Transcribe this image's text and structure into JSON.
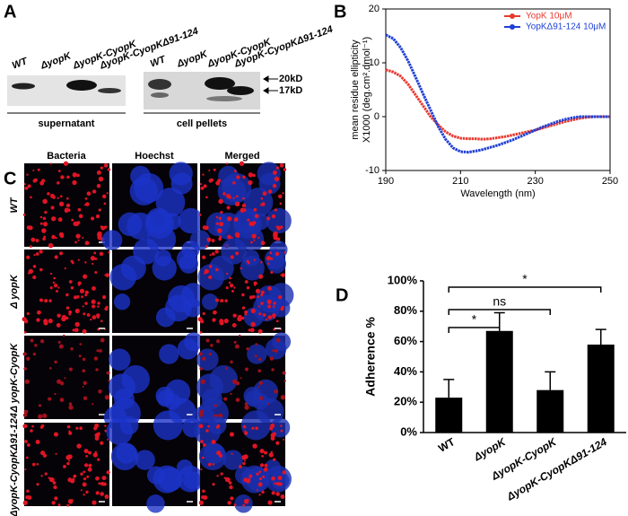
{
  "panel_a": {
    "label": "A",
    "lanes": [
      "WT",
      "ΔyopK",
      "ΔyopK-CyopK",
      "ΔyopK-CyopKΔ91-124"
    ],
    "groups": [
      "supernatant",
      "cell pellets"
    ],
    "markers": [
      "20kD",
      "17kD"
    ]
  },
  "panel_c": {
    "label": "C",
    "columns": [
      "Bacteria",
      "Hoechst",
      "Merged"
    ],
    "rows": [
      "WT",
      "Δ yopK",
      "Δ yopK-CyopK",
      "ΔyopK-CyopKΔ91-124"
    ]
  },
  "chart_data": [
    {
      "type": "line",
      "panel_label": "B",
      "xlabel": "Wavelength (nm)",
      "ylabel": [
        "mean residue ellipticity",
        "X1000 (deg.cm².dmol⁻¹)"
      ],
      "x": [
        190,
        192,
        194,
        196,
        198,
        200,
        202,
        204,
        206,
        208,
        210,
        212,
        214,
        216,
        218,
        220,
        222,
        224,
        226,
        228,
        230,
        232,
        234,
        236,
        238,
        240,
        242,
        244,
        246,
        248,
        250
      ],
      "series": [
        {
          "name": "YopK 10μM",
          "color": "#e8392f",
          "values": [
            8.7,
            8.3,
            7.5,
            6,
            4,
            2,
            0,
            -1.5,
            -2.8,
            -3.6,
            -4,
            -4.1,
            -4.1,
            -4.2,
            -4.1,
            -3.9,
            -3.7,
            -3.4,
            -3.1,
            -2.8,
            -2.5,
            -2.1,
            -1.7,
            -1.3,
            -0.9,
            -0.6,
            -0.3,
            -0.1,
            0,
            0,
            0
          ]
        },
        {
          "name": "YopKΔ91-124 10μM",
          "color": "#1f3fd6",
          "values": [
            15.2,
            14.5,
            12.8,
            10.3,
            7.3,
            4.2,
            1.2,
            -1.8,
            -4.2,
            -5.8,
            -6.5,
            -6.6,
            -6.4,
            -6.1,
            -5.7,
            -5.3,
            -4.8,
            -4.3,
            -3.7,
            -3.1,
            -2.5,
            -1.9,
            -1.4,
            -0.9,
            -0.5,
            -0.2,
            0,
            0,
            0,
            0,
            0
          ]
        }
      ],
      "xlim": [
        190,
        250
      ],
      "xticks": [
        190,
        210,
        230,
        250
      ],
      "ylim": [
        -10,
        20
      ],
      "yticks": [
        -10,
        0,
        10,
        20
      ],
      "legend": "upper right"
    },
    {
      "type": "bar",
      "panel_label": "D",
      "ylabel": "Adherence %",
      "categories": [
        "WT",
        "ΔyopK",
        "ΔyopK-CyopK",
        "ΔyopK-CyopKΔ91-124"
      ],
      "values": [
        23,
        67,
        28,
        58
      ],
      "errors": [
        12,
        12,
        12,
        10
      ],
      "color": "#000000",
      "ylim": [
        0,
        100
      ],
      "yticks": [
        {
          "value": 0,
          "label": "0%"
        },
        {
          "value": 20,
          "label": "20%"
        },
        {
          "value": 40,
          "label": "40%"
        },
        {
          "value": 60,
          "label": "60%"
        },
        {
          "value": 80,
          "label": "80%"
        },
        {
          "value": 100,
          "label": "100%"
        }
      ],
      "annotations": [
        {
          "text": "*",
          "from": "WT",
          "to": "ΔyopK"
        },
        {
          "text": "ns",
          "from": "WT",
          "to": "ΔyopK-CyopK"
        },
        {
          "text": "*",
          "from": "WT",
          "to": "ΔyopK-CyopKΔ91-124"
        }
      ]
    }
  ]
}
